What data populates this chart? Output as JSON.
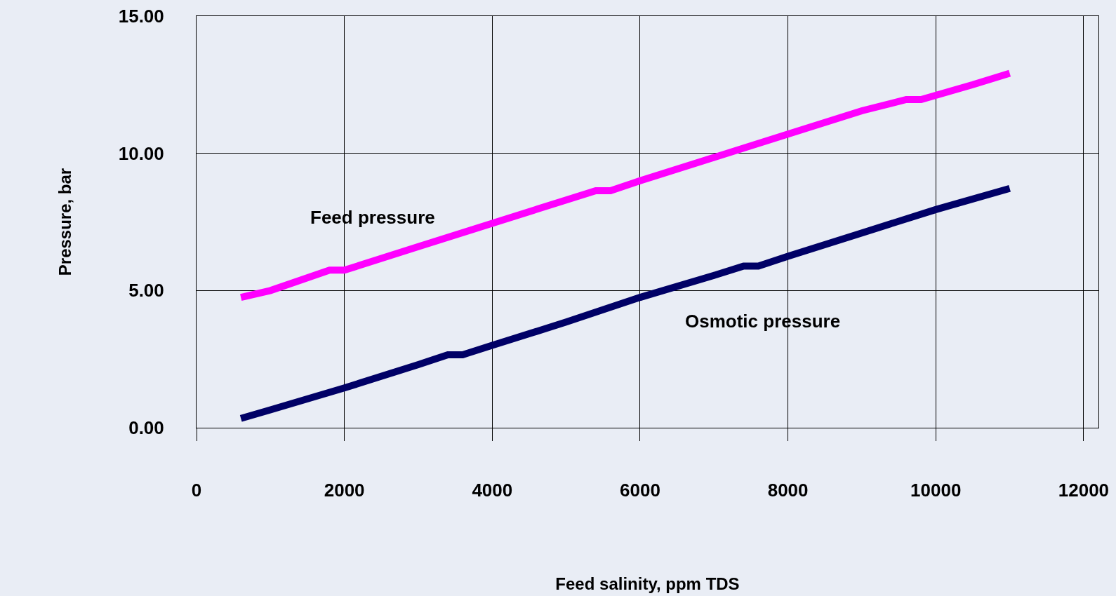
{
  "chart_data": {
    "type": "line",
    "xlabel": "Feed salinity, ppm TDS",
    "ylabel": "Pressure, bar",
    "series": [
      {
        "name": "Feed pressure",
        "color": "#ff00ff",
        "x": [
          600,
          1000,
          1800,
          2000,
          3000,
          4000,
          5000,
          5400,
          5600,
          6000,
          7000,
          8000,
          9000,
          9600,
          9800,
          10500,
          11000
        ],
        "values": [
          4.75,
          5.0,
          5.74,
          5.74,
          6.6,
          7.45,
          8.3,
          8.64,
          8.64,
          9.0,
          9.85,
          10.7,
          11.55,
          11.96,
          11.96,
          12.5,
          12.92
        ]
      },
      {
        "name": "Osmotic pressure",
        "color": "#000066",
        "x": [
          600,
          1000,
          2000,
          3000,
          3400,
          3600,
          4000,
          5000,
          6000,
          7000,
          7400,
          7600,
          8000,
          9000,
          10000,
          11000
        ],
        "values": [
          0.34,
          0.65,
          1.45,
          2.3,
          2.66,
          2.66,
          3.0,
          3.85,
          4.75,
          5.55,
          5.89,
          5.89,
          6.25,
          7.1,
          7.95,
          8.72
        ]
      }
    ],
    "xlim": [
      0,
      12200
    ],
    "xticks": [
      0,
      2000,
      4000,
      6000,
      8000,
      10000,
      12000
    ],
    "ylim": [
      0,
      15
    ],
    "yticks": [
      {
        "value": 0,
        "label": "0.00"
      },
      {
        "value": 5,
        "label": "5.00"
      },
      {
        "value": 10,
        "label": "10.00"
      },
      {
        "value": 15,
        "label": "15.00"
      }
    ],
    "grid": true,
    "marker": "none",
    "line_style": "solid"
  }
}
